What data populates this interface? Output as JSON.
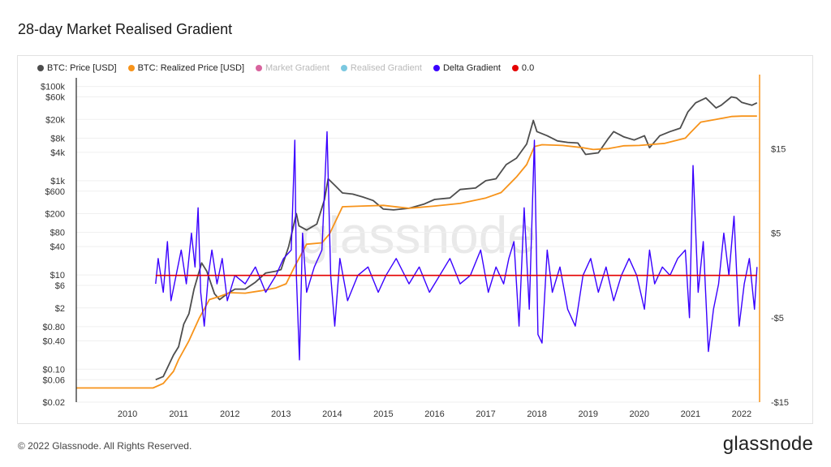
{
  "title": "28-day Market Realised Gradient",
  "footer": "© 2022 Glassnode. All Rights Reserved.",
  "brand": "glassnode",
  "watermark": "glassnode",
  "colors": {
    "price": "#4d4d4d",
    "realized": "#f7931a",
    "market": "#d8649e",
    "realised": "#7bc8e0",
    "delta": "#3a00ff",
    "zero": "#e50000"
  },
  "chart_data": {
    "type": "line",
    "legend_placement": "top-left",
    "legend": [
      {
        "label": "BTC: Price [USD]",
        "color": "#4d4d4d",
        "active": true
      },
      {
        "label": "BTC: Realized Price [USD]",
        "color": "#f7931a",
        "active": true
      },
      {
        "label": "Market Gradient",
        "color": "#d8649e",
        "active": false
      },
      {
        "label": "Realised Gradient",
        "color": "#7bc8e0",
        "active": false
      },
      {
        "label": "Delta Gradient",
        "color": "#3a00ff",
        "active": true
      },
      {
        "label": "0.0",
        "color": "#e50000",
        "active": true
      }
    ],
    "x_range": [
      2009.0,
      2022.35
    ],
    "x_ticks": [
      "2010",
      "2011",
      "2012",
      "2013",
      "2014",
      "2015",
      "2016",
      "2017",
      "2018",
      "2019",
      "2020",
      "2021",
      "2022"
    ],
    "y_left": {
      "scale": "log",
      "range": [
        0.02,
        130000
      ],
      "ticks": [
        {
          "v": 100000,
          "label": "$100k"
        },
        {
          "v": 60000,
          "label": "$60k"
        },
        {
          "v": 20000,
          "label": "$20k"
        },
        {
          "v": 8000,
          "label": "$8k"
        },
        {
          "v": 4000,
          "label": "$4k"
        },
        {
          "v": 1000,
          "label": "$1k"
        },
        {
          "v": 600,
          "label": "$600"
        },
        {
          "v": 200,
          "label": "$200"
        },
        {
          "v": 80,
          "label": "$80"
        },
        {
          "v": 40,
          "label": "$40"
        },
        {
          "v": 10,
          "label": "$10"
        },
        {
          "v": 6,
          "label": "$6"
        },
        {
          "v": 2,
          "label": "$2"
        },
        {
          "v": 0.8,
          "label": "$0.80"
        },
        {
          "v": 0.4,
          "label": "$0.40"
        },
        {
          "v": 0.1,
          "label": "$0.10"
        },
        {
          "v": 0.06,
          "label": "$0.06"
        },
        {
          "v": 0.02,
          "label": "$0.02"
        }
      ]
    },
    "y_right": {
      "scale": "linear",
      "range": [
        -15,
        23
      ],
      "ticks": [
        {
          "v": 15,
          "label": "$15"
        },
        {
          "v": 5,
          "label": "$5"
        },
        {
          "v": -5,
          "label": "-$5"
        },
        {
          "v": -15,
          "label": "-$15"
        }
      ]
    },
    "series": [
      {
        "name": "BTC: Price [USD]",
        "axis": "left",
        "x": [
          2010.55,
          2010.7,
          2010.9,
          2011.0,
          2011.1,
          2011.2,
          2011.3,
          2011.45,
          2011.55,
          2011.7,
          2011.8,
          2011.95,
          2012.1,
          2012.3,
          2012.5,
          2012.7,
          2012.9,
          2013.0,
          2013.15,
          2013.3,
          2013.35,
          2013.5,
          2013.7,
          2013.85,
          2013.92,
          2014.05,
          2014.2,
          2014.4,
          2014.6,
          2014.8,
          2015.0,
          2015.2,
          2015.5,
          2015.8,
          2016.0,
          2016.3,
          2016.5,
          2016.8,
          2017.0,
          2017.2,
          2017.4,
          2017.6,
          2017.8,
          2017.93,
          2018.0,
          2018.2,
          2018.4,
          2018.6,
          2018.8,
          2018.95,
          2019.2,
          2019.4,
          2019.5,
          2019.7,
          2019.9,
          2020.1,
          2020.2,
          2020.4,
          2020.6,
          2020.8,
          2020.95,
          2021.1,
          2021.3,
          2021.5,
          2021.6,
          2021.8,
          2021.9,
          2022.0,
          2022.2,
          2022.3
        ],
        "y": [
          0.06,
          0.07,
          0.2,
          0.3,
          0.9,
          1.5,
          5,
          18,
          12,
          4,
          3,
          4,
          5,
          5,
          7,
          11,
          12,
          13,
          40,
          200,
          110,
          90,
          120,
          400,
          1100,
          800,
          550,
          520,
          450,
          380,
          250,
          240,
          260,
          320,
          400,
          430,
          650,
          700,
          1000,
          1100,
          2200,
          3000,
          6000,
          19000,
          11000,
          9000,
          7000,
          6500,
          6300,
          3600,
          3900,
          8000,
          11000,
          8500,
          7300,
          9000,
          5000,
          9000,
          11000,
          13000,
          29000,
          45000,
          57000,
          35000,
          40000,
          60000,
          57000,
          46000,
          40000,
          45000
        ]
      },
      {
        "name": "BTC: Realized Price [USD]",
        "axis": "left",
        "x": [
          2009.0,
          2010.5,
          2010.7,
          2010.9,
          2011.0,
          2011.2,
          2011.4,
          2011.6,
          2011.8,
          2012.0,
          2012.3,
          2012.6,
          2012.9,
          2013.1,
          2013.25,
          2013.5,
          2013.8,
          2013.95,
          2014.2,
          2014.6,
          2015.0,
          2015.5,
          2016.0,
          2016.5,
          2017.0,
          2017.3,
          2017.6,
          2017.8,
          2017.95,
          2018.1,
          2018.5,
          2018.9,
          2019.1,
          2019.4,
          2019.7,
          2020.0,
          2020.5,
          2020.9,
          2021.0,
          2021.2,
          2021.5,
          2021.8,
          2022.0,
          2022.3
        ],
        "y": [
          0.04,
          0.04,
          0.05,
          0.09,
          0.16,
          0.4,
          1.2,
          3,
          3.5,
          4.2,
          4.1,
          4.6,
          5.3,
          6.5,
          14,
          45,
          48,
          75,
          280,
          290,
          300,
          260,
          290,
          330,
          430,
          560,
          1200,
          2200,
          5300,
          5800,
          5600,
          5000,
          4600,
          4800,
          5500,
          5600,
          6200,
          8000,
          10500,
          17500,
          20000,
          23000,
          23500,
          23500
        ]
      },
      {
        "name": "Delta Gradient",
        "axis": "right",
        "x": [
          2010.55,
          2010.6,
          2010.7,
          2010.78,
          2010.85,
          2010.95,
          2011.05,
          2011.15,
          2011.25,
          2011.32,
          2011.38,
          2011.43,
          2011.5,
          2011.58,
          2011.65,
          2011.75,
          2011.85,
          2011.95,
          2012.1,
          2012.3,
          2012.5,
          2012.7,
          2012.9,
          2013.05,
          2013.2,
          2013.27,
          2013.3,
          2013.36,
          2013.42,
          2013.5,
          2013.65,
          2013.8,
          2013.9,
          2013.97,
          2014.05,
          2014.15,
          2014.3,
          2014.5,
          2014.7,
          2014.9,
          2015.05,
          2015.25,
          2015.5,
          2015.7,
          2015.9,
          2016.1,
          2016.3,
          2016.5,
          2016.7,
          2016.9,
          2017.05,
          2017.2,
          2017.35,
          2017.45,
          2017.55,
          2017.65,
          2017.75,
          2017.85,
          2017.95,
          2018.02,
          2018.1,
          2018.2,
          2018.3,
          2018.45,
          2018.6,
          2018.75,
          2018.9,
          2019.05,
          2019.2,
          2019.35,
          2019.5,
          2019.65,
          2019.8,
          2019.95,
          2020.1,
          2020.2,
          2020.3,
          2020.45,
          2020.6,
          2020.75,
          2020.9,
          2020.98,
          2021.05,
          2021.15,
          2021.25,
          2021.35,
          2021.45,
          2021.55,
          2021.65,
          2021.75,
          2021.85,
          2021.95,
          2022.05,
          2022.15,
          2022.25,
          2022.3
        ],
        "y": [
          -1,
          2,
          -2,
          4,
          -3,
          0,
          3,
          -1,
          5,
          1,
          8,
          -2,
          -6,
          0,
          3,
          -1,
          2,
          -3,
          0,
          -1,
          1,
          -2,
          0,
          2,
          3,
          16,
          0,
          -10,
          5,
          -2,
          1,
          3,
          17,
          0,
          -6,
          2,
          -3,
          0,
          1,
          -2,
          0,
          2,
          -1,
          1,
          -2,
          0,
          2,
          -1,
          0,
          3,
          -2,
          1,
          -1,
          2,
          4,
          -6,
          8,
          -4,
          16,
          -7,
          -8,
          3,
          -2,
          1,
          -4,
          -6,
          0,
          2,
          -2,
          1,
          -3,
          0,
          2,
          0,
          -4,
          3,
          -1,
          1,
          0,
          2,
          3,
          -5,
          13,
          -2,
          4,
          -9,
          -4,
          -1,
          5,
          0,
          7,
          -6,
          -1,
          2,
          -4,
          1
        ]
      },
      {
        "name": "0.0",
        "axis": "right",
        "x": [
          2010.55,
          2022.3
        ],
        "y": [
          0,
          0
        ]
      }
    ]
  }
}
